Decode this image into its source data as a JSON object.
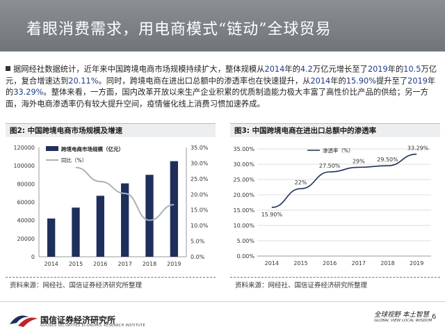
{
  "title": "着眼消费需求，用电商模式“链动”全球贸易",
  "intro": {
    "p1": "据网经社数据统计，近年来中国跨境电商市场规模持续扩大，整体规模从",
    "h1": "2014",
    "p2": "年的",
    "h2": "4.2",
    "p3": "万亿元增长至了",
    "h3": "2019",
    "p4": "年的",
    "h4": "10.5",
    "p5": "万亿元，复合增速达到",
    "h5": "20.11%",
    "p6": "。同时，跨境电商在进出口总额中的渗透率也在快速提升，从",
    "h6": "2014",
    "p7": "年的",
    "h7": "15.90%",
    "p8": "提升至了",
    "h8": "2019",
    "p9": "年的",
    "h9": "33.29%",
    "p10": "。整体来看，一方面，国内改革开放以来生产企业积累的优质制造能力极大丰富了高性价比产品的供给；另一方面，海外电商渗透率仍有较大提升空间，疫情催化线上消费习惯加速养成。"
  },
  "figures": {
    "fig2_title": "图2:  中国跨境电商市场规模及增速",
    "fig3_title": "图3:  中国跨境电商在进出口总额中的渗透率",
    "source": "资料来源：网经社、国信证券经济研究所整理"
  },
  "chart_data": [
    {
      "type": "bar",
      "categories": [
        "2014",
        "2015",
        "2016",
        "2017",
        "2018",
        "2019"
      ],
      "series": [
        {
          "name": "跨境电商市场规模（亿元）",
          "type": "bar",
          "axis": "left",
          "values": [
            42000,
            54000,
            67000,
            80600,
            90000,
            105000
          ],
          "color": "#1f2f5c"
        },
        {
          "name": "同比（%）",
          "type": "line",
          "axis": "right",
          "values": [
            null,
            28.6,
            24.1,
            20.3,
            11.7,
            16.7
          ],
          "color": "#a9b1ba"
        }
      ],
      "ylim": [
        0,
        120000
      ],
      "yticks": [
        "0",
        "20000",
        "40000",
        "60000",
        "80000",
        "100000",
        "120000"
      ],
      "y2lim": [
        0,
        35
      ],
      "y2ticks": [
        "0.0%",
        "5.0%",
        "10.0%",
        "15.0%",
        "20.0%",
        "25.0%",
        "30.0%",
        "35.0%"
      ],
      "legend": "top-left"
    },
    {
      "type": "line",
      "categories": [
        "2014",
        "2015",
        "2016",
        "2017",
        "2018",
        "2019"
      ],
      "series": [
        {
          "name": "渗透率（%）",
          "values": [
            15.9,
            22,
            27.5,
            29,
            29.5,
            33.29
          ],
          "color": "#1f2f5c"
        }
      ],
      "data_labels": [
        "15.90%",
        "22%",
        "27.50%",
        "29%",
        "29.50%",
        "33.29%"
      ],
      "ylim": [
        0,
        35
      ],
      "yticks": [
        "0.00%",
        "5.00%",
        "10.00%",
        "15.00%",
        "20.00%",
        "25.00%",
        "30.00%",
        "35.00%"
      ],
      "legend": "top-left"
    }
  ],
  "footer": {
    "logo_name": "国信证券经济研究所",
    "logo_en": "GUOSEN SECURITIES ECONOMIC RESEARCH INSTITUTE",
    "slogan_cn": "全球视野  本土智慧",
    "slogan_en": "GLOBAL VIEW    LOCAL WISDOM",
    "page": "6"
  }
}
